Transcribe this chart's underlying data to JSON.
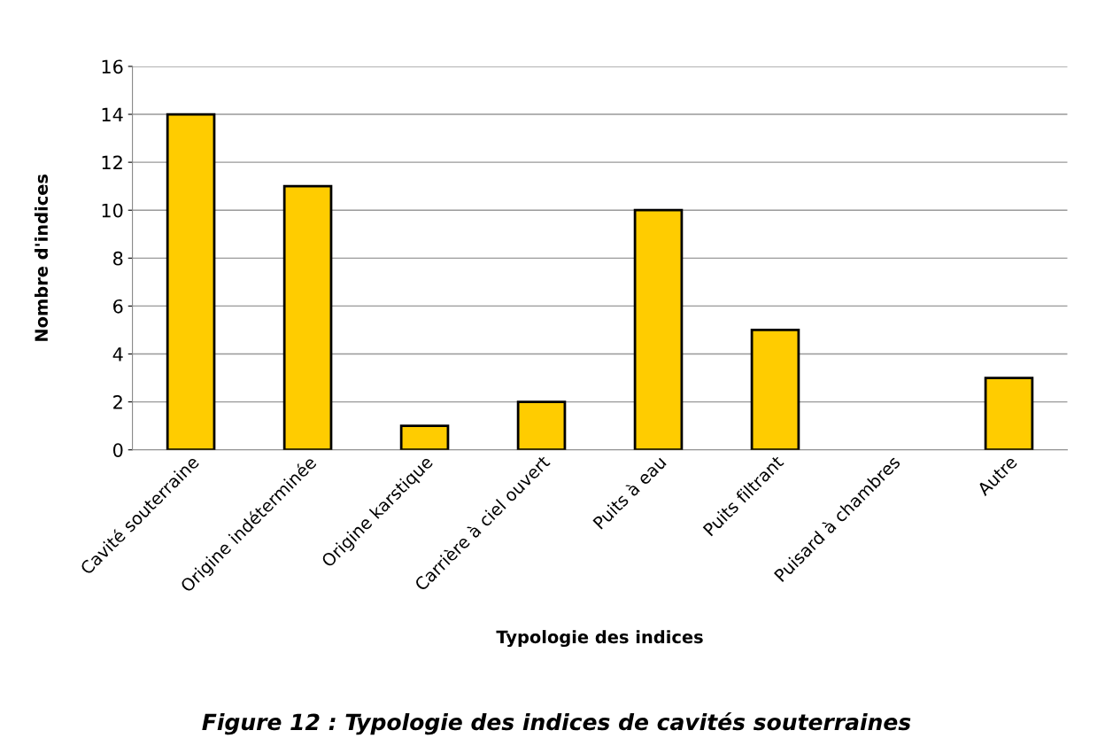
{
  "chart_data": {
    "type": "bar",
    "xlabel": "Typologie des indices",
    "ylabel": "Nombre d'indices",
    "annotations": [
      "Figure 12 : Typologie des indices de cavités souterraines"
    ],
    "categories": [
      "Cavité souterraine",
      "Origine indéterminée",
      "Origine karstique",
      "Carrière à ciel ouvert",
      "Puits à eau",
      "Puits filtrant",
      "Puisard à chambres",
      "Autre"
    ],
    "values": [
      14,
      11,
      1,
      2,
      10,
      5,
      0,
      3
    ],
    "color": "#ffcc00",
    "ylim": [
      0,
      16
    ],
    "yticks": [
      0,
      2,
      4,
      6,
      8,
      10,
      12,
      14,
      16
    ],
    "grid": "y",
    "legend": false
  }
}
